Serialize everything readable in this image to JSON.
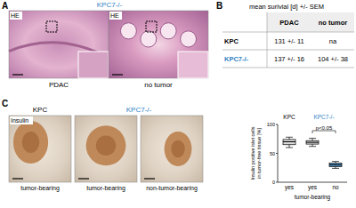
{
  "panel_a": {
    "label": "A",
    "title": "KPC7-/-",
    "images": [
      {
        "stain": "HE",
        "caption": "PDAC"
      },
      {
        "stain": "HE",
        "caption": "no tumor"
      }
    ]
  },
  "panel_b": {
    "label": "B",
    "table": {
      "title": "mean surivial [d] +/- SEM",
      "header": [
        "PDAC",
        "no tumor"
      ],
      "rows": [
        {
          "name": "KPC",
          "cells": [
            "131 +/- 11",
            "na"
          ]
        },
        {
          "name": "KPC7-/-",
          "cells": [
            "137 +/- 16",
            "104 +/- 38"
          ]
        }
      ]
    }
  },
  "panel_c": {
    "label": "C",
    "groups": [
      {
        "name": "KPC",
        "images": [
          {
            "stain": "Insulin",
            "caption": "tumor-bearing"
          }
        ]
      },
      {
        "name": "KPC7-/-",
        "images": [
          {
            "caption": "tumor-bearing"
          },
          {
            "caption": "non-tumor-bearing"
          }
        ]
      }
    ]
  },
  "chart_data": {
    "type": "box",
    "groups": [
      {
        "name": "KPC",
        "count": 1
      },
      {
        "name": "KPC7-/-",
        "count": 2
      }
    ],
    "categories": [
      "yes",
      "yes",
      "no"
    ],
    "xlabel": "tumor-bearing",
    "ylabel": [
      "Insulin positive islet cells",
      "in tumor-free tissue [%]"
    ],
    "boxes": [
      {
        "min": 60,
        "q1": 65,
        "median": 70,
        "q3": 74,
        "max": 78
      },
      {
        "min": 62,
        "q1": 66,
        "median": 69,
        "q3": 72,
        "max": 76
      },
      {
        "min": 24,
        "q1": 27,
        "median": 30,
        "q3": 33,
        "max": 36
      }
    ],
    "colors": [
      "#d9d9d9",
      "#d9d9d9",
      "#5b9bd0"
    ],
    "ylim": [
      0,
      100
    ],
    "yticks": [
      0,
      50,
      100
    ],
    "grid": false,
    "annotations": [
      {
        "text": "p<0.05",
        "from": 1,
        "to": 2
      }
    ]
  }
}
